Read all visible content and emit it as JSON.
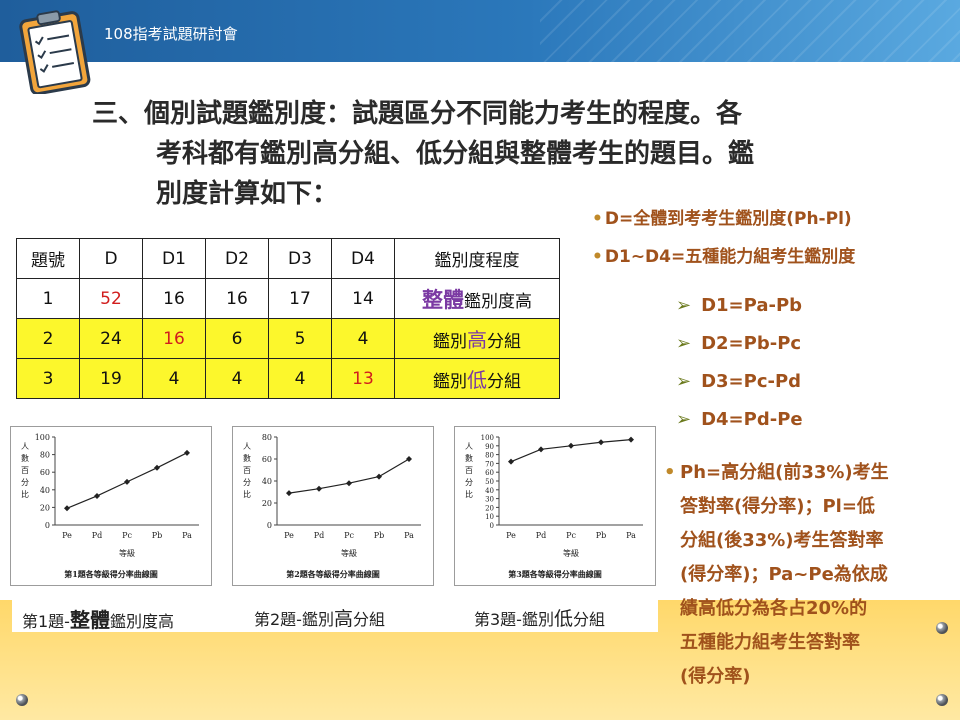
{
  "header": {
    "title": "108指考試題研討會"
  },
  "heading": {
    "lines": [
      "三、個別試題鑑別度：試題區分不同能力考生的程度。各",
      "考科都有鑑別高分組、低分組與整體考生的題目。鑑",
      "別度計算如下："
    ]
  },
  "table": {
    "headers": [
      "題號",
      "D",
      "D1",
      "D2",
      "D3",
      "D4",
      "鑑別度程度"
    ],
    "rows": [
      {
        "cells": [
          "1",
          "52",
          "16",
          "16",
          "17",
          "14"
        ],
        "degree_prefix": "",
        "degree_em": "整體",
        "degree_suffix": "鑑別度高"
      },
      {
        "cells": [
          "2",
          "24",
          "16",
          "6",
          "5",
          "4"
        ],
        "degree_prefix": "鑑別",
        "degree_em": "高",
        "degree_suffix": "分組"
      },
      {
        "cells": [
          "3",
          "19",
          "4",
          "4",
          "4",
          "13"
        ],
        "degree_prefix": "鑑別",
        "degree_em": "低",
        "degree_suffix": "分組"
      }
    ],
    "highlight_color": "#fcf72c",
    "red_color": "#d11d1d"
  },
  "definitions": [
    "D=全體到考考生鑑別度(Ph-Pl)",
    "D1~D4=五種能力組考生鑑別度"
  ],
  "formulas": [
    "D1=Pa-Pb",
    "D2=Pb-Pc",
    "D3=Pc-Pd",
    "D4=Pd-Pe"
  ],
  "note_lines": [
    "Ph=高分組(前33%)考生",
    "答對率(得分率)；Pl=低",
    "分組(後33%)考生答對率",
    "(得分率)；Pa~Pe為依成",
    "績高低分為各占20%的",
    "五種能力組考生答對率",
    "(得分率)"
  ],
  "captions": [
    {
      "prefix": "第1題-",
      "em": "整體",
      "suffix": "鑑別度高"
    },
    {
      "prefix": "第2題-鑑別",
      "em": "高",
      "suffix": "分組"
    },
    {
      "prefix": "第3題-鑑別",
      "em": "低",
      "suffix": "分組"
    }
  ],
  "chart_data": [
    {
      "type": "line",
      "title": "第1題各等級得分率曲線圖",
      "xlabel": "等級",
      "ylabel": "人數百分比",
      "categories": [
        "Pe",
        "Pd",
        "Pc",
        "Pb",
        "Pa"
      ],
      "values": [
        19,
        33,
        49,
        65,
        82
      ],
      "yticks": [
        "0",
        "20",
        "40",
        "60",
        "80",
        "100"
      ],
      "ylim": [
        0,
        100
      ]
    },
    {
      "type": "line",
      "title": "第2題各等級得分率曲線圖",
      "xlabel": "等級",
      "ylabel": "人數百分比",
      "categories": [
        "Pe",
        "Pd",
        "Pc",
        "Pb",
        "Pa"
      ],
      "values": [
        29,
        33,
        38,
        44,
        60
      ],
      "yticks": [
        "0",
        "20",
        "40",
        "60",
        "80"
      ],
      "ylim": [
        0,
        80
      ]
    },
    {
      "type": "line",
      "title": "第3題各等級得分率曲線圖",
      "xlabel": "等級",
      "ylabel": "人數百分比",
      "categories": [
        "Pe",
        "Pd",
        "Pc",
        "Pb",
        "Pa"
      ],
      "values": [
        72,
        86,
        90,
        94,
        97
      ],
      "yticks": [
        "0",
        "10",
        "20",
        "30",
        "40",
        "50",
        "60",
        "70",
        "80",
        "90",
        "100"
      ],
      "ylim": [
        0,
        100
      ]
    }
  ]
}
